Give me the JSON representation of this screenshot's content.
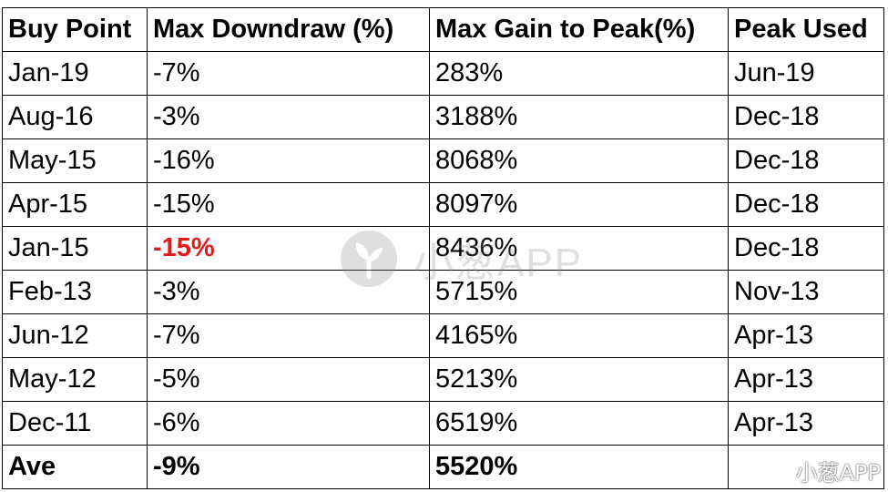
{
  "table": {
    "headers": [
      "Buy Point",
      "Max Downdraw (%)",
      "Max Gain to Peak(%)",
      "Peak Used"
    ],
    "rows": [
      [
        "Jan-19",
        "-7%",
        "283%",
        "Jun-19"
      ],
      [
        "Aug-16",
        "-3%",
        "3188%",
        "Dec-18"
      ],
      [
        "May-15",
        "-16%",
        "8068%",
        "Dec-18"
      ],
      [
        "Apr-15",
        "-15%",
        "8097%",
        "Dec-18"
      ],
      [
        "Jan-15",
        "-15%",
        "8436%",
        "Dec-18"
      ],
      [
        "Feb-13",
        "-3%",
        "5715%",
        "Nov-13"
      ],
      [
        "Jun-12",
        "-7%",
        "4165%",
        "Apr-13"
      ],
      [
        "May-12",
        "-5%",
        "5213%",
        "Apr-13"
      ],
      [
        "Dec-11",
        "-6%",
        "6519%",
        "Apr-13"
      ]
    ],
    "total": [
      "Ave",
      "-9%",
      "5520%",
      ""
    ],
    "highlight_color": "#e01b1b"
  },
  "watermark": {
    "center_text": "小葱APP",
    "corner_text": "小葱APP",
    "corner_icon": "weibo-icon",
    "center_icon": "sprout-logo-icon"
  }
}
